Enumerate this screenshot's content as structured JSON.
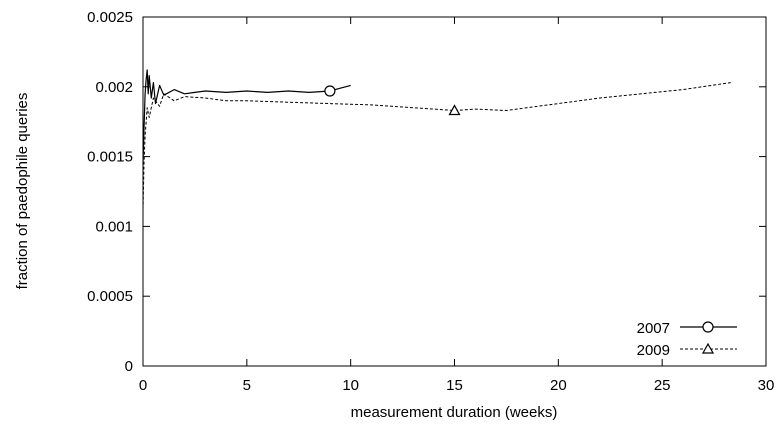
{
  "chart_data": {
    "type": "line",
    "xlabel": "measurement duration (weeks)",
    "ylabel": "fraction of paedophile queries",
    "xlim": [
      0,
      30
    ],
    "ylim": [
      0,
      0.0025
    ],
    "x_ticks": [
      "0",
      "5",
      "10",
      "15",
      "20",
      "25",
      "30"
    ],
    "y_ticks": [
      "0",
      "0.0005",
      "0.001",
      "0.0015",
      "0.002",
      "0.0025"
    ],
    "grid": false,
    "legend_position": "bottom-right",
    "series": [
      {
        "name": "2007",
        "line_style": "solid",
        "marker": "circle",
        "marker_at": [
          9,
          0.00197
        ],
        "x": [
          0.0,
          0.05,
          0.1,
          0.15,
          0.2,
          0.25,
          0.3,
          0.4,
          0.5,
          0.6,
          0.8,
          1.0,
          1.5,
          2.0,
          2.5,
          3.0,
          4.0,
          5.0,
          6.0,
          7.0,
          8.0,
          9.0,
          9.5,
          10.0
        ],
        "y": [
          0.00145,
          0.0017,
          0.00195,
          0.00205,
          0.00212,
          0.00195,
          0.00208,
          0.00192,
          0.00203,
          0.00188,
          0.00201,
          0.00194,
          0.00198,
          0.00195,
          0.00196,
          0.00197,
          0.00196,
          0.00197,
          0.00196,
          0.00197,
          0.00196,
          0.00197,
          0.00199,
          0.00201
        ]
      },
      {
        "name": "2009",
        "line_style": "dashed",
        "marker": "triangle",
        "marker_at": [
          15,
          0.00183
        ],
        "x": [
          0.0,
          0.05,
          0.1,
          0.2,
          0.3,
          0.5,
          0.8,
          1.0,
          1.5,
          2.0,
          3.0,
          4.0,
          5.0,
          7.0,
          9.0,
          11.0,
          13.0,
          15.0,
          16.0,
          17.5,
          19.0,
          20.5,
          22.0,
          24.0,
          26.0,
          28.3
        ],
        "y": [
          0.00112,
          0.00145,
          0.00165,
          0.00185,
          0.00178,
          0.00192,
          0.00186,
          0.00195,
          0.0019,
          0.00193,
          0.00192,
          0.0019,
          0.0019,
          0.00189,
          0.00188,
          0.00187,
          0.00185,
          0.00183,
          0.00184,
          0.00183,
          0.00186,
          0.00189,
          0.00192,
          0.00195,
          0.00198,
          0.00203
        ]
      }
    ]
  }
}
